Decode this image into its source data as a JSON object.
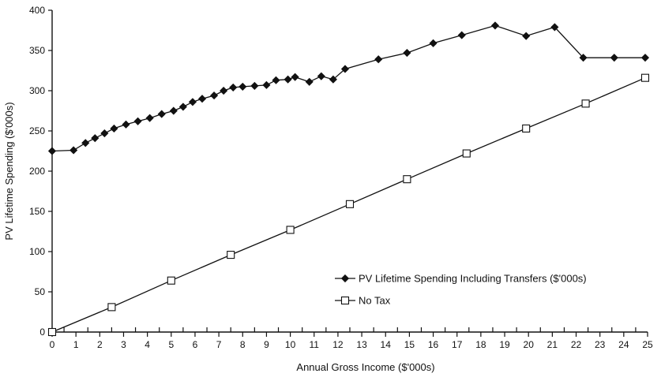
{
  "chart_data": {
    "type": "line",
    "title": "",
    "xlabel": "Annual Gross Income ($'000s)",
    "ylabel": "PV Lifetime Spending ($'000s)",
    "xlim": [
      0,
      25
    ],
    "ylim": [
      0,
      400
    ],
    "x_ticks": [
      "0",
      "1",
      "2",
      "3",
      "4",
      "5",
      "6",
      "7",
      "8",
      "9",
      "10",
      "11",
      "12",
      "13",
      "14",
      "15",
      "16",
      "17",
      "18",
      "19",
      "20",
      "21",
      "22",
      "23",
      "24",
      "25"
    ],
    "y_ticks": [
      "0",
      "50",
      "100",
      "150",
      "200",
      "250",
      "300",
      "350",
      "400"
    ],
    "grid": false,
    "legend_position": "lower-right",
    "series": [
      {
        "name": "PV Lifetime Spending Including Transfers ($'000s)",
        "marker": "filled-diamond",
        "color": "#111111",
        "x": [
          0,
          0.9,
          1.4,
          1.8,
          2.2,
          2.6,
          3.1,
          3.6,
          4.1,
          4.6,
          5.1,
          5.5,
          5.9,
          6.3,
          6.8,
          7.2,
          7.6,
          8.0,
          8.5,
          9.0,
          9.4,
          9.9,
          10.2,
          10.8,
          11.3,
          11.8,
          12.3,
          13.7,
          14.9,
          16.0,
          17.2,
          18.6,
          19.9,
          21.1,
          22.3,
          23.6,
          24.9
        ],
        "y": [
          225,
          226,
          235,
          241,
          247,
          253,
          258,
          262,
          266,
          271,
          275,
          280,
          286,
          290,
          294,
          300,
          304,
          305,
          306,
          307,
          313,
          314,
          317,
          311,
          318,
          314,
          327,
          339,
          347,
          359,
          369,
          381,
          368,
          379,
          341,
          341,
          341
        ]
      },
      {
        "name": "No Tax",
        "marker": "open-square",
        "color": "#111111",
        "x": [
          0,
          2.5,
          5.0,
          7.5,
          10.0,
          12.5,
          14.9,
          17.4,
          19.9,
          22.4,
          24.9
        ],
        "y": [
          0,
          31,
          64,
          96,
          127,
          159,
          190,
          222,
          253,
          284,
          316
        ]
      }
    ]
  }
}
